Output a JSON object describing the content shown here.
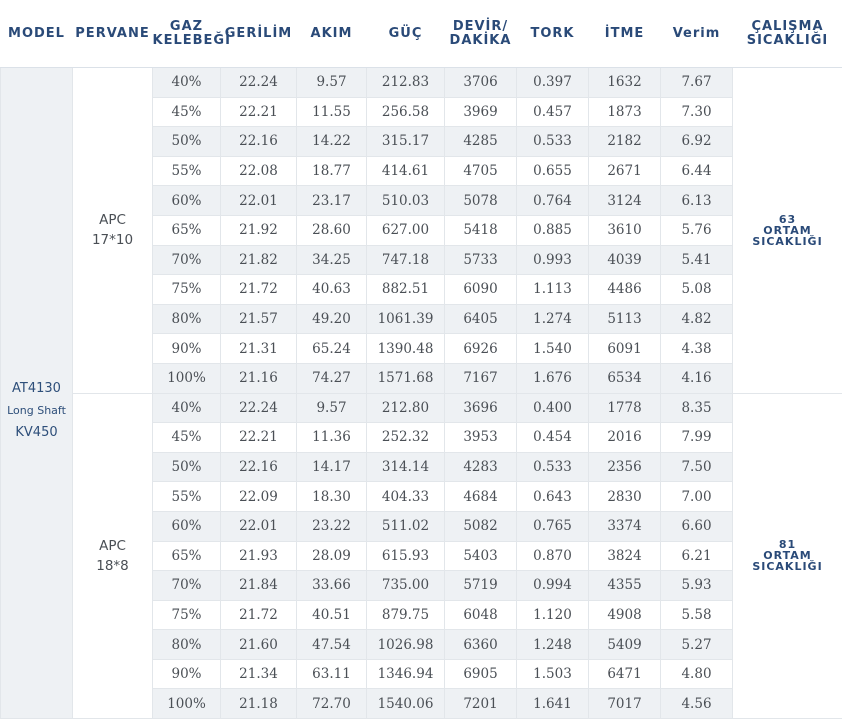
{
  "headers": [
    "MODEL",
    "PERVANE",
    "GAZ\nKELEBEĞİ",
    "GERİLİM",
    "AKIM",
    "GÜÇ",
    "DEVİR/\nDAKİKA",
    "TORK",
    "İTME",
    "Verim",
    "ÇALIŞMA\nSICAKLIĞI"
  ],
  "model": {
    "line1": "AT4130",
    "line2": "Long Shaft",
    "line3": "KV450"
  },
  "groups": [
    {
      "propeller": {
        "line1": "APC",
        "line2": "17*10"
      },
      "temperature": {
        "line1": "63",
        "line2": "ORTAM",
        "line3": "SICAKLIĞI"
      },
      "rows": [
        [
          "40%",
          "22.24",
          "9.57",
          "212.83",
          "3706",
          "0.397",
          "1632",
          "7.67"
        ],
        [
          "45%",
          "22.21",
          "11.55",
          "256.58",
          "3969",
          "0.457",
          "1873",
          "7.30"
        ],
        [
          "50%",
          "22.16",
          "14.22",
          "315.17",
          "4285",
          "0.533",
          "2182",
          "6.92"
        ],
        [
          "55%",
          "22.08",
          "18.77",
          "414.61",
          "4705",
          "0.655",
          "2671",
          "6.44"
        ],
        [
          "60%",
          "22.01",
          "23.17",
          "510.03",
          "5078",
          "0.764",
          "3124",
          "6.13"
        ],
        [
          "65%",
          "21.92",
          "28.60",
          "627.00",
          "5418",
          "0.885",
          "3610",
          "5.76"
        ],
        [
          "70%",
          "21.82",
          "34.25",
          "747.18",
          "5733",
          "0.993",
          "4039",
          "5.41"
        ],
        [
          "75%",
          "21.72",
          "40.63",
          "882.51",
          "6090",
          "1.113",
          "4486",
          "5.08"
        ],
        [
          "80%",
          "21.57",
          "49.20",
          "1061.39",
          "6405",
          "1.274",
          "5113",
          "4.82"
        ],
        [
          "90%",
          "21.31",
          "65.24",
          "1390.48",
          "6926",
          "1.540",
          "6091",
          "4.38"
        ],
        [
          "100%",
          "21.16",
          "74.27",
          "1571.68",
          "7167",
          "1.676",
          "6534",
          "4.16"
        ]
      ]
    },
    {
      "propeller": {
        "line1": "APC",
        "line2": "18*8"
      },
      "temperature": {
        "line1": "81",
        "line2": "ORTAM",
        "line3": "SICAKLIĞI"
      },
      "rows": [
        [
          "40%",
          "22.24",
          "9.57",
          "212.80",
          "3696",
          "0.400",
          "1778",
          "8.35"
        ],
        [
          "45%",
          "22.21",
          "11.36",
          "252.32",
          "3953",
          "0.454",
          "2016",
          "7.99"
        ],
        [
          "50%",
          "22.16",
          "14.17",
          "314.14",
          "4283",
          "0.533",
          "2356",
          "7.50"
        ],
        [
          "55%",
          "22.09",
          "18.30",
          "404.33",
          "4684",
          "0.643",
          "2830",
          "7.00"
        ],
        [
          "60%",
          "22.01",
          "23.22",
          "511.02",
          "5082",
          "0.765",
          "3374",
          "6.60"
        ],
        [
          "65%",
          "21.93",
          "28.09",
          "615.93",
          "5403",
          "0.870",
          "3824",
          "6.21"
        ],
        [
          "70%",
          "21.84",
          "33.66",
          "735.00",
          "5719",
          "0.994",
          "4355",
          "5.93"
        ],
        [
          "75%",
          "21.72",
          "40.51",
          "879.75",
          "6048",
          "1.120",
          "4908",
          "5.58"
        ],
        [
          "80%",
          "21.60",
          "47.54",
          "1026.98",
          "6360",
          "1.248",
          "5409",
          "5.27"
        ],
        [
          "90%",
          "21.34",
          "63.11",
          "1346.94",
          "6905",
          "1.503",
          "6471",
          "4.80"
        ],
        [
          "100%",
          "21.18",
          "72.70",
          "1540.06",
          "7201",
          "1.641",
          "7017",
          "4.56"
        ]
      ]
    }
  ]
}
